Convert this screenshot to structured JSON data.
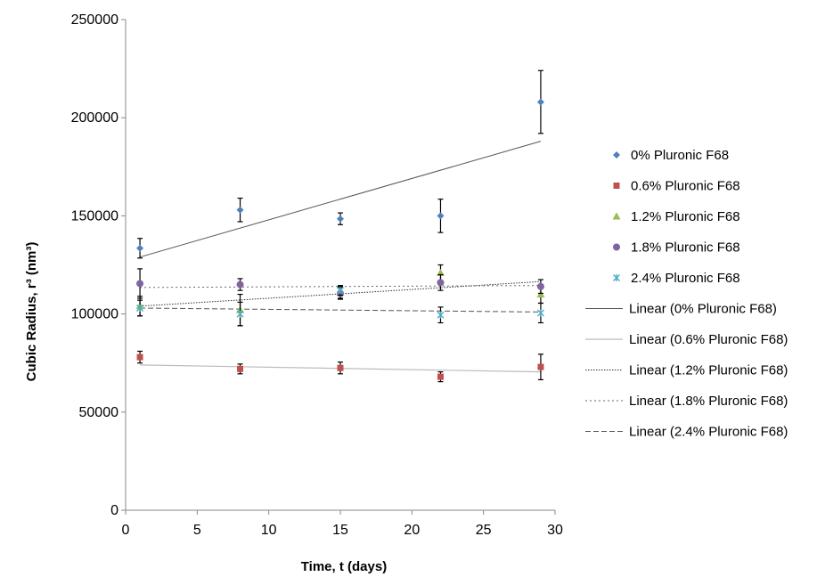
{
  "chart_data": {
    "type": "scatter",
    "title": "",
    "xlabel": "Time, t (days)",
    "ylabel": "Cubic Radius, r³ (nm³)",
    "xlim": [
      0,
      30
    ],
    "ylim": [
      0,
      250000
    ],
    "xticks": [
      0,
      5,
      10,
      15,
      20,
      25,
      30
    ],
    "yticks": [
      0,
      50000,
      100000,
      150000,
      200000,
      250000
    ],
    "grid": false,
    "legend_position": "right",
    "x": [
      1,
      8,
      15,
      22,
      29
    ],
    "series": [
      {
        "name": "0% Pluronic F68",
        "marker": "diamond",
        "color": "#4f81bd",
        "values": [
          133500,
          153000,
          148500,
          150000,
          208000
        ],
        "errors": [
          5000,
          6000,
          3000,
          8500,
          16000
        ]
      },
      {
        "name": "0.6% Pluronic F68",
        "marker": "square",
        "color": "#c0504d",
        "values": [
          78000,
          72000,
          72500,
          68000,
          73000
        ],
        "errors": [
          3000,
          2500,
          3000,
          2500,
          6500
        ]
      },
      {
        "name": "1.2% Pluronic F68",
        "marker": "triangle",
        "color": "#9bbb59",
        "values": [
          104000,
          102000,
          111000,
          121000,
          110000
        ],
        "errors": [
          5000,
          8000,
          3000,
          4000,
          4500
        ]
      },
      {
        "name": "1.8% Pluronic F68",
        "marker": "circle",
        "color": "#8064a2",
        "values": [
          115500,
          115000,
          110500,
          116000,
          114000
        ],
        "errors": [
          7500,
          3000,
          3000,
          4000,
          3500
        ]
      },
      {
        "name": "2.4% Pluronic F68",
        "marker": "asterisk",
        "color": "#4bacc6",
        "values": [
          103000,
          100000,
          112000,
          99500,
          100500
        ],
        "errors": [
          4000,
          6000,
          2500,
          4000,
          5000
        ]
      }
    ],
    "trendlines": [
      {
        "name": "Linear (0% Pluronic F68)",
        "color": "#555555",
        "dash": "",
        "width": 1,
        "x": [
          1,
          29
        ],
        "y": [
          129000,
          188000
        ]
      },
      {
        "name": "Linear (0.6% Pluronic F68)",
        "color": "#bbbbbb",
        "dash": "",
        "width": 1.2,
        "x": [
          1,
          29
        ],
        "y": [
          74000,
          70500
        ]
      },
      {
        "name": "Linear (1.2% Pluronic F68)",
        "color": "#333333",
        "dash": "1.5,1.5",
        "width": 1,
        "x": [
          1,
          29
        ],
        "y": [
          104000,
          116500
        ]
      },
      {
        "name": "Linear (1.8% Pluronic F68)",
        "color": "#666666",
        "dash": "2,3",
        "width": 1,
        "x": [
          1,
          29
        ],
        "y": [
          113500,
          114500
        ]
      },
      {
        "name": "Linear (2.4% Pluronic F68)",
        "color": "#555555",
        "dash": "6,3",
        "width": 1,
        "x": [
          1,
          29
        ],
        "y": [
          103000,
          101000
        ]
      }
    ]
  }
}
